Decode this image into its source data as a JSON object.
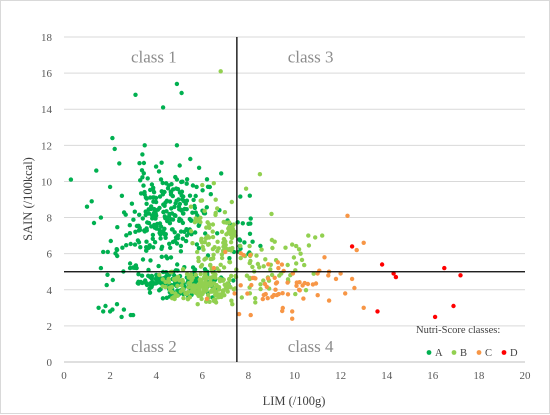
{
  "chart_data": {
    "type": "scatter",
    "xlabel": "LIM (/100g)",
    "ylabel": "SAIN (/100kcal)",
    "xlim": [
      0,
      20
    ],
    "ylim": [
      0,
      18
    ],
    "x_ticks": [
      "0",
      "2",
      "4",
      "6",
      "8",
      "10",
      "12",
      "14",
      "16",
      "18",
      "20"
    ],
    "y_ticks": [
      "0",
      "2",
      "4",
      "6",
      "8",
      "10",
      "12",
      "14",
      "16",
      "18"
    ],
    "grid": "horizontal",
    "thresholds": {
      "x": 7.5,
      "y": 5
    },
    "quadrant_labels": [
      {
        "text": "class 1",
        "x": 3.9,
        "y": 16.6
      },
      {
        "text": "class 2",
        "x": 3.9,
        "y": 0.55
      },
      {
        "text": "class 3",
        "x": 10.7,
        "y": 16.6
      },
      {
        "text": "class 4",
        "x": 10.7,
        "y": 0.55
      }
    ],
    "legend": {
      "title": "Nutri-Score classes:",
      "position": "bottom-right"
    },
    "series": [
      {
        "name": "A",
        "color": "#00b050",
        "seed": 11,
        "explicit_points": [
          [
            0.3,
            10.1
          ],
          [
            1.0,
            8.6
          ],
          [
            1.2,
            8.9
          ],
          [
            1.3,
            7.7
          ],
          [
            1.6,
            8.0
          ],
          [
            1.7,
            6.1
          ],
          [
            1.6,
            5.2
          ],
          [
            1.9,
            6.1
          ],
          [
            1.5,
            3.0
          ],
          [
            1.7,
            2.8
          ],
          [
            1.8,
            3.1
          ],
          [
            2.0,
            2.8
          ],
          [
            2.1,
            2.9
          ],
          [
            2.3,
            3.2
          ],
          [
            2.6,
            2.9
          ],
          [
            2.9,
            2.6
          ],
          [
            2.5,
            2.5
          ],
          [
            3.0,
            2.6
          ],
          [
            3.1,
            14.8
          ],
          [
            4.3,
            14.1
          ],
          [
            4.9,
            15.4
          ],
          [
            5.1,
            14.9
          ],
          [
            2.1,
            12.4
          ],
          [
            2.2,
            11.8
          ],
          [
            3.5,
            12.0
          ],
          [
            4.9,
            12.0
          ],
          [
            2.4,
            11.0
          ],
          [
            3.4,
            11.5
          ],
          [
            1.4,
            10.6
          ],
          [
            2.0,
            9.7
          ]
        ],
        "clusters": [
          {
            "n": 210,
            "cx": 4.5,
            "cy": 8.3,
            "sx": 0.8,
            "sy": 1.2,
            "xmin": 2.5,
            "xmax": 7.5,
            "ymin": 5.8,
            "ymax": 11.5
          },
          {
            "n": 160,
            "cx": 4.8,
            "cy": 4.4,
            "sx": 1.0,
            "sy": 0.45,
            "xmin": 3.2,
            "xmax": 7.5,
            "ymin": 3.5,
            "ymax": 5.8
          },
          {
            "n": 50,
            "cx": 3.3,
            "cy": 6.5,
            "sx": 0.9,
            "sy": 1.2,
            "xmin": 1.8,
            "xmax": 5.0,
            "ymin": 4.0,
            "ymax": 9.5
          },
          {
            "n": 22,
            "cx": 7.8,
            "cy": 7.2,
            "sx": 0.5,
            "sy": 1.0,
            "xmin": 7.0,
            "xmax": 8.8,
            "ymin": 5.5,
            "ymax": 10.0
          }
        ]
      },
      {
        "name": "B",
        "color": "#92d050",
        "seed": 23,
        "explicit_points": [
          [
            6.8,
            16.1
          ],
          [
            8.5,
            10.4
          ],
          [
            6.5,
            9.9
          ],
          [
            7.9,
            9.6
          ],
          [
            6.0,
            9.8
          ],
          [
            10.6,
            7.0
          ],
          [
            10.9,
            6.9
          ],
          [
            11.2,
            7.0
          ],
          [
            9.0,
            8.2
          ],
          [
            9.9,
            6.5
          ],
          [
            5.8,
            3.2
          ],
          [
            6.6,
            3.3
          ],
          [
            7.3,
            3.2
          ],
          [
            7.1,
            3.9
          ],
          [
            8.3,
            3.3
          ]
        ],
        "clusters": [
          {
            "n": 160,
            "cx": 6.0,
            "cy": 4.1,
            "sx": 1.0,
            "sy": 0.5,
            "xmin": 4.0,
            "xmax": 7.5,
            "ymin": 3.3,
            "ymax": 5.5
          },
          {
            "n": 100,
            "cx": 6.8,
            "cy": 6.7,
            "sx": 0.8,
            "sy": 1.1,
            "xmin": 5.5,
            "xmax": 7.5,
            "ymin": 5.0,
            "ymax": 9.0
          },
          {
            "n": 55,
            "cx": 8.6,
            "cy": 5.2,
            "sx": 1.1,
            "sy": 1.0,
            "xmin": 7.5,
            "xmax": 11.0,
            "ymin": 3.5,
            "ymax": 8.0
          }
        ]
      },
      {
        "name": "C",
        "color": "#f79646",
        "seed": 37,
        "explicit_points": [
          [
            12.3,
            8.1
          ],
          [
            11.3,
            5.8
          ],
          [
            11.5,
            5.0
          ],
          [
            12.0,
            4.9
          ],
          [
            12.5,
            4.6
          ],
          [
            12.7,
            6.2
          ],
          [
            13.0,
            6.6
          ],
          [
            12.6,
            4.1
          ],
          [
            13.0,
            3.0
          ],
          [
            11.0,
            4.9
          ],
          [
            10.8,
            4.3
          ],
          [
            10.1,
            4.4
          ],
          [
            8.1,
            2.6
          ],
          [
            9.9,
            2.8
          ],
          [
            9.9,
            2.4
          ],
          [
            11.5,
            3.4
          ],
          [
            9.3,
            5.2
          ],
          [
            9.7,
            4.4
          ],
          [
            10.2,
            4.0
          ],
          [
            7.4,
            3.8
          ],
          [
            7.0,
            6.1
          ],
          [
            6.5,
            5.2
          ],
          [
            12.2,
            3.8
          ],
          [
            11.8,
            4.6
          ],
          [
            6.2,
            3.5
          ]
        ],
        "clusters": [
          {
            "n": 45,
            "cx": 9.2,
            "cy": 4.4,
            "sx": 1.0,
            "sy": 0.9,
            "xmin": 7.5,
            "xmax": 11.8,
            "ymin": 2.4,
            "ymax": 6.5
          }
        ]
      },
      {
        "name": "D",
        "color": "#ff0000",
        "seed": 41,
        "explicit_points": [
          [
            12.5,
            6.4
          ],
          [
            13.8,
            5.4
          ],
          [
            14.3,
            4.9
          ],
          [
            14.4,
            4.7
          ],
          [
            16.5,
            5.2
          ],
          [
            17.2,
            4.8
          ],
          [
            16.9,
            3.1
          ],
          [
            16.1,
            2.5
          ],
          [
            13.6,
            2.8
          ]
        ],
        "clusters": []
      }
    ]
  }
}
